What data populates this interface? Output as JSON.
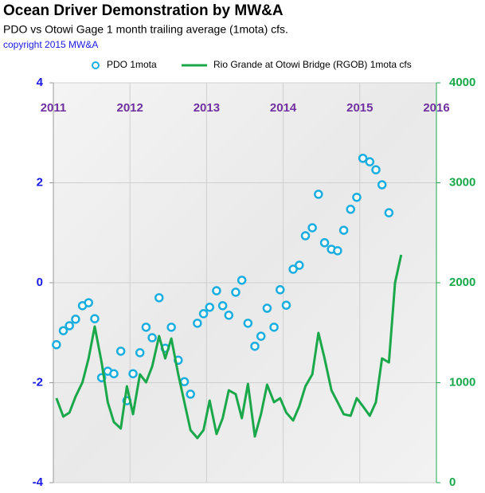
{
  "chart_data": {
    "type": "combo",
    "title": "Ocean Driver Demonstration  by MW&A",
    "subtitle": "PDO vs Otowi Gage 1 month trailing average (1mota) cfs.",
    "annotation": "copyright 2015  MW&A",
    "xlim": [
      2011,
      2016
    ],
    "xticks": [
      2011,
      2012,
      2013,
      2014,
      2015,
      2016
    ],
    "ylim": [
      -4,
      4
    ],
    "yticks": [
      -4,
      -2,
      0,
      2,
      4
    ],
    "y2lim": [
      0,
      4000
    ],
    "y2ticks": [
      0,
      1000,
      2000,
      3000,
      4000
    ],
    "grid": true,
    "legend": "top",
    "series": [
      {
        "name": "PDO 1mota",
        "type": "scatter",
        "color": "#1aaee0",
        "x": [
          2011.04,
          2011.13,
          2011.21,
          2011.29,
          2011.38,
          2011.46,
          2011.54,
          2011.63,
          2011.71,
          2011.79,
          2011.88,
          2011.96,
          2012.04,
          2012.13,
          2012.21,
          2012.29,
          2012.38,
          2012.46,
          2012.54,
          2012.63,
          2012.71,
          2012.79,
          2012.88,
          2012.96,
          2013.04,
          2013.13,
          2013.21,
          2013.29,
          2013.38,
          2013.46,
          2013.54,
          2013.63,
          2013.71,
          2013.79,
          2013.88,
          2013.96,
          2014.04,
          2014.13,
          2014.21,
          2014.29,
          2014.38,
          2014.46,
          2014.54,
          2014.63,
          2014.71,
          2014.79,
          2014.88,
          2014.96,
          2015.04,
          2015.13,
          2015.21,
          2015.29,
          2015.38
        ],
        "values": [
          -1.24,
          -0.96,
          -0.86,
          -0.73,
          -0.46,
          -0.4,
          -0.72,
          -1.9,
          -1.77,
          -1.82,
          -1.37,
          -2.36,
          -1.82,
          -1.4,
          -0.89,
          -1.1,
          -0.3,
          -1.31,
          -0.89,
          -1.55,
          -1.98,
          -2.23,
          -0.81,
          -0.62,
          -0.49,
          -0.16,
          -0.46,
          -0.65,
          -0.19,
          0.05,
          -0.81,
          -1.27,
          -1.07,
          -0.51,
          -0.89,
          -0.14,
          -0.45,
          0.27,
          0.35,
          0.94,
          1.1,
          1.77,
          0.8,
          0.67,
          0.64,
          1.05,
          1.47,
          1.71,
          2.49,
          2.42,
          2.26,
          1.96,
          1.4
        ]
      },
      {
        "name": "Rio Grande at Otowi Bridge (RGOB) 1mota cfs",
        "type": "line",
        "axis": "y2",
        "color": "#1aa84a",
        "x": [
          2011.04,
          2011.13,
          2011.21,
          2011.29,
          2011.38,
          2011.46,
          2011.54,
          2011.63,
          2011.71,
          2011.79,
          2011.88,
          2011.96,
          2012.04,
          2012.13,
          2012.21,
          2012.29,
          2012.38,
          2012.46,
          2012.54,
          2012.63,
          2012.71,
          2012.79,
          2012.88,
          2012.96,
          2013.04,
          2013.13,
          2013.21,
          2013.29,
          2013.38,
          2013.46,
          2013.54,
          2013.63,
          2013.71,
          2013.79,
          2013.88,
          2013.96,
          2014.04,
          2014.13,
          2014.21,
          2014.29,
          2014.38,
          2014.46,
          2014.54,
          2014.63,
          2014.71,
          2014.79,
          2014.88,
          2014.96,
          2015.04,
          2015.13,
          2015.21,
          2015.29,
          2015.38,
          2015.46,
          2015.54
        ],
        "values": [
          845,
          661,
          701,
          861,
          1004,
          1243,
          1562,
          1203,
          805,
          606,
          542,
          964,
          685,
          1084,
          1004,
          1163,
          1466,
          1243,
          1442,
          1084,
          805,
          526,
          446,
          526,
          821,
          486,
          645,
          924,
          885,
          645,
          988,
          462,
          685,
          980,
          805,
          845,
          701,
          622,
          765,
          964,
          1084,
          1498,
          1243,
          924,
          805,
          685,
          669,
          845,
          765,
          669,
          805,
          1243,
          1203,
          2000,
          2279
        ]
      }
    ]
  }
}
